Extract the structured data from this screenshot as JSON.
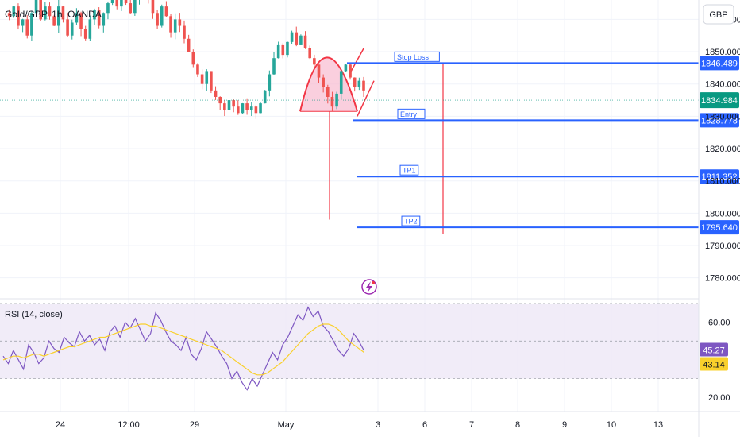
{
  "header": {
    "symbol": "Gold/GBP, 1h, OANDA"
  },
  "currency": "GBP",
  "colors": {
    "bull": "#26a69a",
    "bear": "#ef5350",
    "level": "#2962ff",
    "price": "#089981",
    "pattern": "#f23645",
    "pattern_fill": "#f8bbd0",
    "rsi": "#7e57c2",
    "rsi_ma": "#f9d02b",
    "rsi_band": "#ede7f6",
    "grid": "#f0f3fa"
  },
  "chart_data": [
    {
      "type": "candlestick",
      "title": "Gold/GBP, 1h, OANDA",
      "y_axis_unit": "GBP",
      "ylim": [
        1775,
        1866
      ],
      "y_ticks": [
        "1860.000",
        "1850.000",
        "1840.000",
        "1830.000",
        "1820.000",
        "1810.000",
        "1800.000",
        "1790.000",
        "1780.000"
      ],
      "y_tick_values": [
        1860,
        1850,
        1840,
        1830,
        1820,
        1810,
        1800,
        1790,
        1780
      ],
      "x_ticks": [
        "24",
        "12:00",
        "29",
        "May",
        "3",
        "6",
        "7",
        "8",
        "9",
        "10",
        "13"
      ],
      "current_price": {
        "label": "1834.984",
        "value": 1834.984
      },
      "ohlc_path": [
        1862,
        1861,
        1864,
        1858,
        1860,
        1855,
        1862,
        1866,
        1860,
        1864,
        1861,
        1858,
        1864,
        1860,
        1855,
        1859,
        1862,
        1857,
        1854,
        1860,
        1863,
        1858,
        1862,
        1865,
        1867,
        1864,
        1868,
        1865,
        1862,
        1866,
        1868,
        1870,
        1866,
        1862,
        1858,
        1864,
        1861,
        1856,
        1860,
        1858,
        1854,
        1850,
        1846,
        1843,
        1840,
        1844,
        1838,
        1836,
        1834,
        1832,
        1835,
        1833,
        1831,
        1834,
        1832,
        1833,
        1831,
        1834,
        1838,
        1843,
        1848,
        1852,
        1849,
        1853,
        1856,
        1852,
        1855,
        1851,
        1848,
        1846,
        1842,
        1839,
        1836,
        1833,
        1837,
        1844,
        1846,
        1842,
        1839,
        1841,
        1838
      ],
      "levels": [
        {
          "label": "Stop Loss",
          "price_label": "1846.489",
          "value": 1846.489
        },
        {
          "label": "Entry",
          "price_label": "1828.778",
          "value": 1828.778
        },
        {
          "label": "TP1",
          "price_label": "1811.352",
          "value": 1811.352
        },
        {
          "label": "TP2",
          "price_label": "1795.640",
          "value": 1795.64
        }
      ]
    },
    {
      "type": "line",
      "title": "RSI (14, close)",
      "ylim": [
        15,
        70
      ],
      "y_ticks": [
        "60.00",
        "20.00"
      ],
      "y_tick_values": [
        60,
        20
      ],
      "band": [
        30,
        70
      ],
      "series": [
        {
          "name": "RSI",
          "last_label": "45.27",
          "values": [
            42,
            38,
            45,
            40,
            35,
            48,
            44,
            38,
            41,
            50,
            46,
            44,
            52,
            49,
            47,
            55,
            50,
            53,
            48,
            51,
            45,
            55,
            58,
            52,
            60,
            57,
            62,
            56,
            50,
            54,
            65,
            61,
            55,
            50,
            48,
            45,
            52,
            43,
            40,
            46,
            55,
            51,
            47,
            42,
            38,
            30,
            34,
            28,
            24,
            30,
            26,
            32,
            38,
            44,
            40,
            48,
            52,
            58,
            64,
            61,
            68,
            63,
            66,
            58,
            55,
            50,
            45,
            42,
            46,
            54,
            50,
            45
          ]
        },
        {
          "name": "RSI-based MA",
          "last_label": "43.14",
          "values": [
            40,
            41,
            42,
            42,
            41,
            42,
            43,
            43,
            42,
            43,
            44,
            45,
            46,
            47,
            47,
            48,
            49,
            50,
            51,
            52,
            52,
            53,
            54,
            55,
            56,
            57,
            58,
            59,
            59,
            58,
            58,
            57,
            56,
            55,
            54,
            53,
            52,
            51,
            50,
            49,
            48,
            47,
            46,
            45,
            43,
            41,
            39,
            37,
            35,
            33,
            32,
            32,
            33,
            35,
            37,
            39,
            42,
            45,
            48,
            51,
            54,
            56,
            58,
            59,
            59,
            58,
            56,
            53,
            50,
            48,
            46,
            44
          ]
        }
      ]
    }
  ]
}
